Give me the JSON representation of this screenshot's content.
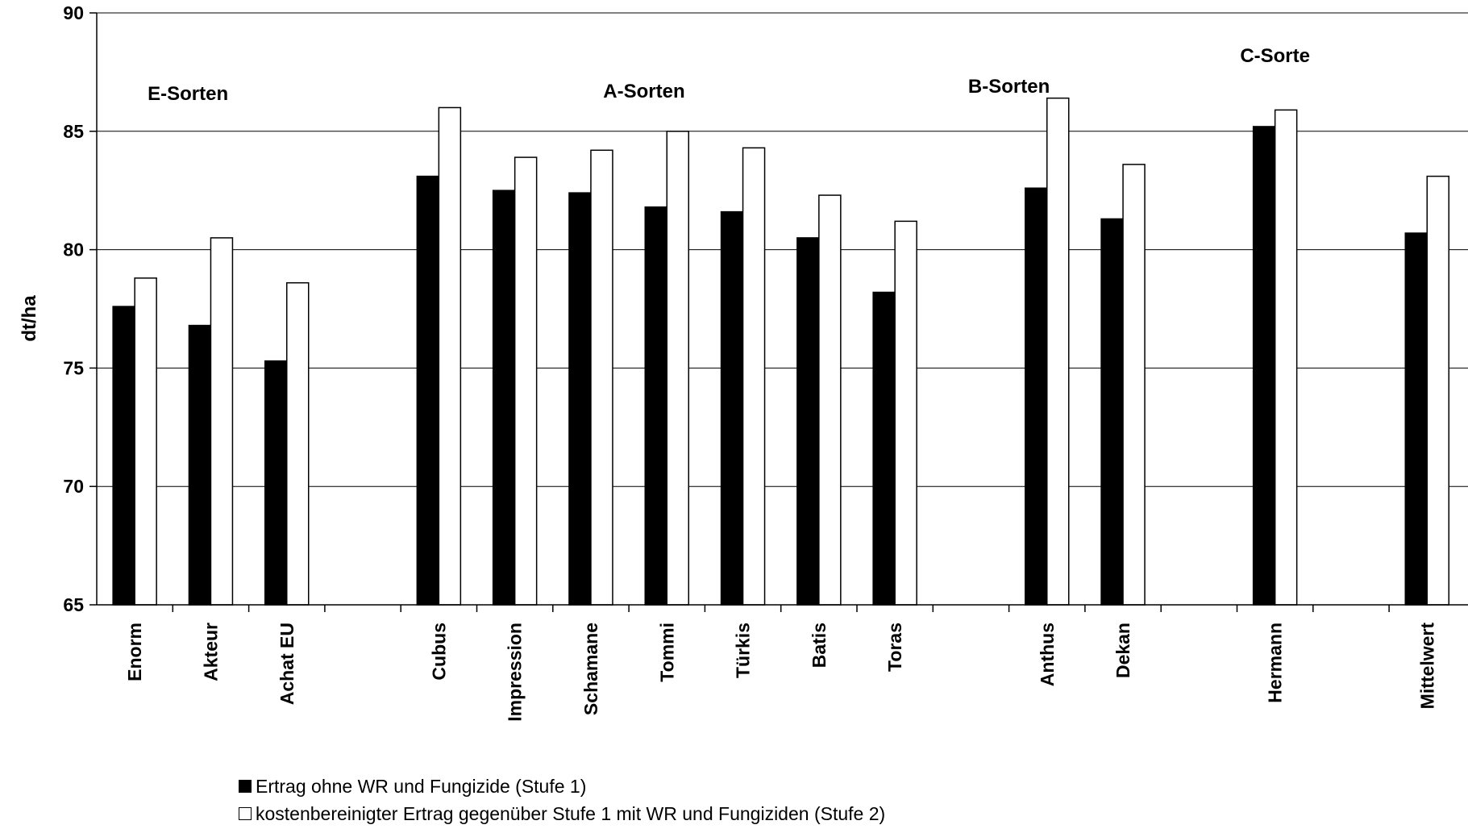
{
  "chart_data": {
    "type": "bar",
    "ylabel": "dt/ha",
    "ylim": [
      65,
      90
    ],
    "yticks": [
      65,
      70,
      75,
      80,
      85,
      90
    ],
    "grid": true,
    "legend_position": "bottom",
    "slots": [
      "Enorm",
      "Akteur",
      "Achat EU",
      "",
      "Cubus",
      "Impression",
      "Schamane",
      "Tommi",
      "Türkis",
      "Batis",
      "Toras",
      "",
      "Anthus",
      "Dekan",
      "",
      "Hermann",
      "",
      "Mittelwert"
    ],
    "categories": [
      "Enorm",
      "Akteur",
      "Achat EU",
      "Cubus",
      "Impression",
      "Schamane",
      "Tommi",
      "Türkis",
      "Batis",
      "Toras",
      "Anthus",
      "Dekan",
      "Hermann",
      "Mittelwert"
    ],
    "series": [
      {
        "name": "Ertrag ohne WR und Fungizide (Stufe 1)",
        "color": "#000000",
        "values": [
          77.6,
          76.8,
          75.3,
          83.1,
          82.5,
          82.4,
          81.8,
          81.6,
          80.5,
          78.2,
          82.6,
          81.3,
          85.2,
          80.7
        ]
      },
      {
        "name": "kostenbereinigter Ertrag gegenüber Stufe 1 mit WR und Fungiziden (Stufe 2)",
        "color": "#ffffff",
        "values": [
          78.8,
          80.5,
          78.6,
          86.0,
          83.9,
          84.2,
          85.0,
          84.3,
          82.3,
          81.2,
          86.4,
          83.6,
          85.9,
          83.1
        ]
      }
    ],
    "annotations": [
      {
        "text": "E-Sorten",
        "slot": 1.2,
        "y": 86.6
      },
      {
        "text": "A-Sorten",
        "slot": 7.2,
        "y": 86.7
      },
      {
        "text": "B-Sorten",
        "slot": 12.0,
        "y": 86.9
      },
      {
        "text": "C-Sorte",
        "slot": 15.5,
        "y": 88.2
      }
    ]
  }
}
